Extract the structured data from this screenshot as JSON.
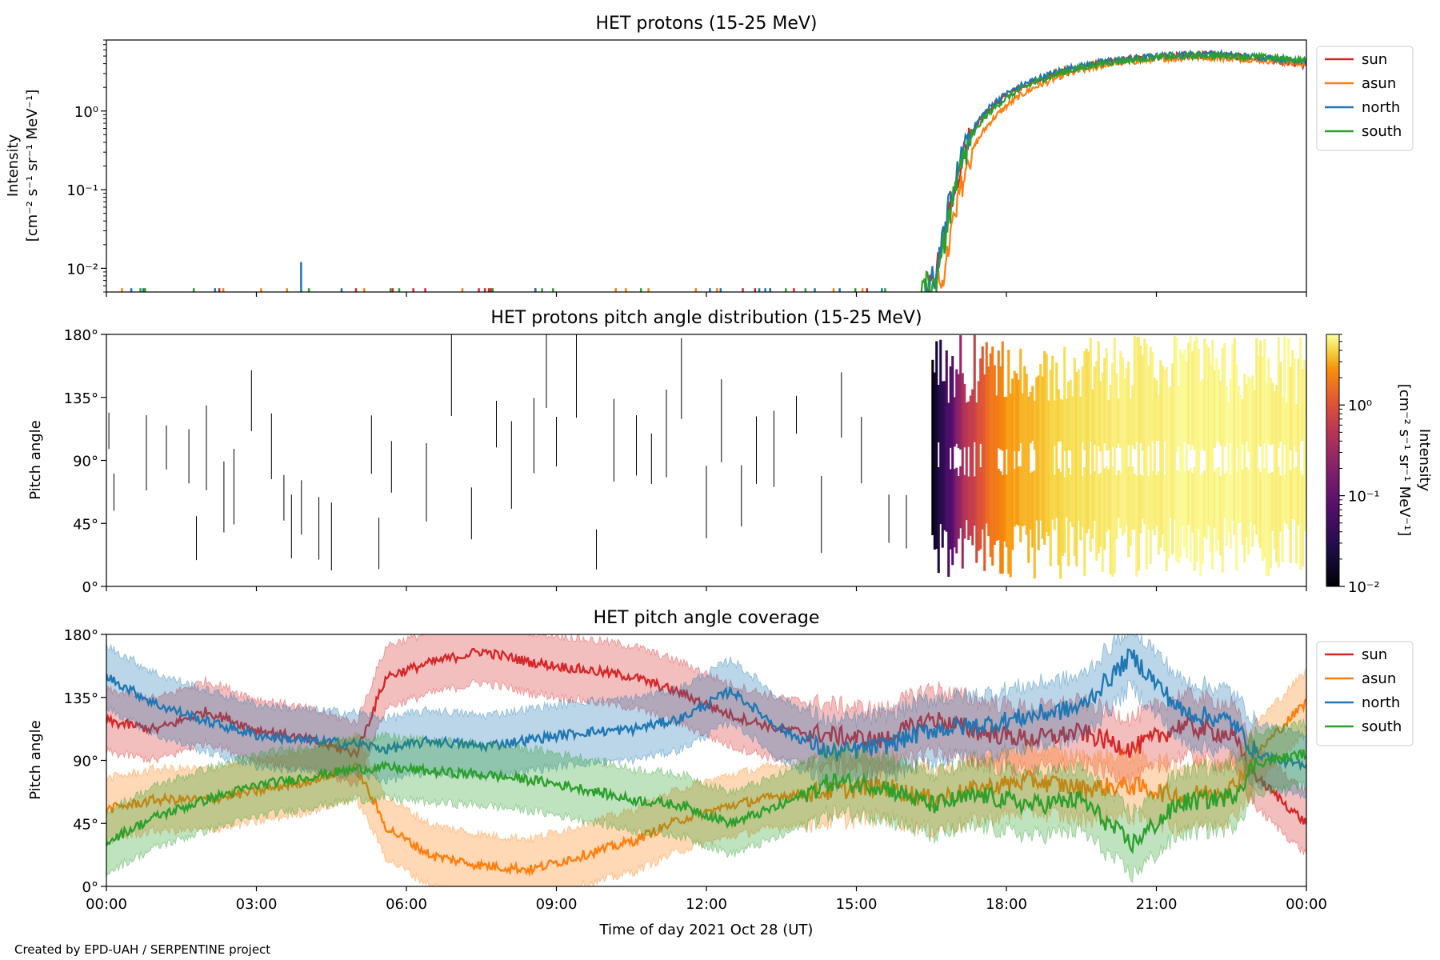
{
  "credit": "Created by EPD-UAH / SERPENTINE project",
  "chart_data": [
    {
      "type": "line",
      "title": "HET protons (15-25 MeV)",
      "ylabel": [
        "Intensity",
        "[cm⁻² s⁻¹ sr⁻¹ MeV⁻¹]"
      ],
      "yscale": "log",
      "ylim": [
        0.005,
        8
      ],
      "yticks": [
        {
          "value": 1,
          "label": "10⁰"
        },
        {
          "value": 0.1,
          "label": "10⁻¹"
        },
        {
          "value": 0.01,
          "label": "10⁻²"
        }
      ],
      "x_hours": [
        0,
        24
      ],
      "xticks_hours": [
        0,
        3,
        6,
        9,
        12,
        15,
        18,
        21,
        24
      ],
      "legend_position": "outside-right-top",
      "series": [
        {
          "name": "sun",
          "color": "#d62728",
          "points": [
            [
              16.45,
              0.005
            ],
            [
              16.6,
              0.008
            ],
            [
              16.8,
              0.03
            ],
            [
              17.0,
              0.12
            ],
            [
              17.2,
              0.35
            ],
            [
              17.5,
              0.8
            ],
            [
              17.9,
              1.4
            ],
            [
              18.5,
              2.3
            ],
            [
              19.2,
              3.3
            ],
            [
              20.0,
              4.2
            ],
            [
              21.0,
              4.9
            ],
            [
              22.0,
              5.2
            ],
            [
              23.0,
              4.8
            ],
            [
              24.0,
              3.8
            ]
          ]
        },
        {
          "name": "asun",
          "color": "#ff7f0e",
          "points": [
            [
              16.6,
              0.005
            ],
            [
              16.8,
              0.01
            ],
            [
              17.0,
              0.05
            ],
            [
              17.2,
              0.18
            ],
            [
              17.5,
              0.5
            ],
            [
              17.9,
              1.0
            ],
            [
              18.5,
              1.9
            ],
            [
              19.2,
              2.9
            ],
            [
              20.0,
              3.9
            ],
            [
              21.0,
              4.6
            ],
            [
              22.0,
              4.9
            ],
            [
              23.0,
              4.5
            ],
            [
              24.0,
              4.0
            ]
          ]
        },
        {
          "name": "north",
          "color": "#1f77b4",
          "points": [
            [
              16.4,
              0.005
            ],
            [
              16.6,
              0.009
            ],
            [
              16.8,
              0.035
            ],
            [
              17.0,
              0.13
            ],
            [
              17.2,
              0.38
            ],
            [
              17.5,
              0.85
            ],
            [
              17.9,
              1.5
            ],
            [
              18.5,
              2.4
            ],
            [
              19.2,
              3.4
            ],
            [
              20.0,
              4.3
            ],
            [
              21.0,
              5.0
            ],
            [
              22.0,
              5.4
            ],
            [
              23.0,
              4.9
            ],
            [
              24.0,
              4.3
            ]
          ]
        },
        {
          "name": "south",
          "color": "#2ca02c",
          "points": [
            [
              16.3,
              0.005
            ],
            [
              16.6,
              0.007
            ],
            [
              16.8,
              0.025
            ],
            [
              17.0,
              0.1
            ],
            [
              17.2,
              0.3
            ],
            [
              17.5,
              0.72
            ],
            [
              17.9,
              1.3
            ],
            [
              18.5,
              2.2
            ],
            [
              19.2,
              3.2
            ],
            [
              20.0,
              4.1
            ],
            [
              21.0,
              4.8
            ],
            [
              22.0,
              5.1
            ],
            [
              23.0,
              4.9
            ],
            [
              24.0,
              4.4
            ]
          ]
        }
      ]
    },
    {
      "type": "heatmap",
      "title": "HET protons pitch angle distribution (15-25 MeV)",
      "ylabel": "Pitch angle",
      "ylim": [
        0,
        180
      ],
      "yticks": [
        {
          "value": 0,
          "label": "0°"
        },
        {
          "value": 45,
          "label": "45°"
        },
        {
          "value": 90,
          "label": "90°"
        },
        {
          "value": 135,
          "label": "135°"
        },
        {
          "value": 180,
          "label": "180°"
        }
      ],
      "colormap": "inferno",
      "colorbar": {
        "label": "Intensity",
        "units": "[cm⁻² s⁻¹ sr⁻¹ MeV⁻¹]",
        "scale": "log",
        "range": [
          0.01,
          6
        ],
        "ticks": [
          {
            "value": 1,
            "label": "10⁰"
          },
          {
            "value": 0.1,
            "label": "10⁻¹"
          },
          {
            "value": 0.01,
            "label": "10⁻²"
          }
        ]
      },
      "event_onset_hours": 16.5,
      "profile": [
        [
          16.5,
          0.01
        ],
        [
          16.9,
          0.05
        ],
        [
          17.3,
          0.3
        ],
        [
          17.8,
          1.0
        ],
        [
          18.5,
          2.0
        ],
        [
          20.0,
          4.0
        ],
        [
          22.0,
          5.0
        ],
        [
          24.0,
          4.5
        ]
      ],
      "background_counts_hours": [
        0.05,
        0.15,
        0.8,
        1.2,
        1.65,
        1.8,
        2.0,
        2.35,
        2.55,
        2.9,
        3.3,
        3.55,
        3.7,
        3.9,
        4.25,
        4.5,
        5.3,
        5.45,
        5.7,
        6.4,
        6.9,
        7.3,
        7.8,
        8.1,
        8.55,
        8.8,
        9.0,
        9.4,
        9.8,
        10.15,
        10.6,
        10.9,
        11.2,
        11.5,
        12.0,
        12.3,
        12.7,
        13.0,
        13.35,
        13.8,
        14.3,
        14.7,
        15.1,
        15.65,
        16.0
      ]
    },
    {
      "type": "line",
      "title": "HET pitch angle coverage",
      "ylabel": "Pitch angle",
      "xlabel": "Time of day 2021 Oct 28 (UT)",
      "ylim": [
        0,
        180
      ],
      "yticks": [
        {
          "value": 0,
          "label": "0°"
        },
        {
          "value": 45,
          "label": "45°"
        },
        {
          "value": 90,
          "label": "90°"
        },
        {
          "value": 135,
          "label": "135°"
        },
        {
          "value": 180,
          "label": "180°"
        }
      ],
      "xticks": [
        "00:00",
        "03:00",
        "06:00",
        "09:00",
        "12:00",
        "15:00",
        "18:00",
        "21:00",
        "00:00"
      ],
      "xticks_hours": [
        0,
        3,
        6,
        9,
        12,
        15,
        18,
        21,
        24
      ],
      "legend_position": "outside-right-top",
      "band_halfwidth_deg": 22,
      "series": [
        {
          "name": "sun",
          "color": "#d62728",
          "points": [
            [
              0,
              118
            ],
            [
              1,
              112
            ],
            [
              2,
              125
            ],
            [
              3,
              112
            ],
            [
              4,
              105
            ],
            [
              5,
              95
            ],
            [
              5.6,
              150
            ],
            [
              6.5,
              160
            ],
            [
              7.5,
              168
            ],
            [
              8.5,
              160
            ],
            [
              9.5,
              155
            ],
            [
              10.5,
              150
            ],
            [
              11.5,
              138
            ],
            [
              12.5,
              122
            ],
            [
              13.5,
              112
            ],
            [
              14.5,
              108
            ],
            [
              15.5,
              104
            ],
            [
              16.5,
              120
            ],
            [
              17.5,
              110
            ],
            [
              18.5,
              105
            ],
            [
              19.5,
              110
            ],
            [
              20.5,
              98
            ],
            [
              21.5,
              115
            ],
            [
              22.5,
              108
            ],
            [
              23,
              78
            ],
            [
              24,
              45
            ]
          ]
        },
        {
          "name": "asun",
          "color": "#ff7f0e",
          "points": [
            [
              0,
              55
            ],
            [
              1,
              62
            ],
            [
              2,
              62
            ],
            [
              3,
              68
            ],
            [
              4,
              75
            ],
            [
              5,
              85
            ],
            [
              5.6,
              42
            ],
            [
              6.5,
              22
            ],
            [
              7.5,
              15
            ],
            [
              8.5,
              12
            ],
            [
              9.5,
              22
            ],
            [
              10.5,
              32
            ],
            [
              11.5,
              48
            ],
            [
              12.5,
              58
            ],
            [
              13.5,
              65
            ],
            [
              14.5,
              68
            ],
            [
              15.5,
              72
            ],
            [
              16.5,
              62
            ],
            [
              17.5,
              70
            ],
            [
              18.5,
              76
            ],
            [
              19.5,
              70
            ],
            [
              20.5,
              72
            ],
            [
              21.5,
              64
            ],
            [
              22.5,
              70
            ],
            [
              23,
              95
            ],
            [
              24,
              132
            ]
          ]
        },
        {
          "name": "north",
          "color": "#1f77b4",
          "points": [
            [
              0,
              150
            ],
            [
              1,
              130
            ],
            [
              2,
              118
            ],
            [
              3,
              108
            ],
            [
              4,
              104
            ],
            [
              5,
              102
            ],
            [
              5.6,
              98
            ],
            [
              6.5,
              104
            ],
            [
              7.5,
              100
            ],
            [
              8.5,
              105
            ],
            [
              9.5,
              110
            ],
            [
              10.5,
              112
            ],
            [
              11.5,
              120
            ],
            [
              12.5,
              140
            ],
            [
              13.5,
              112
            ],
            [
              14.5,
              95
            ],
            [
              15.5,
              100
            ],
            [
              16.5,
              112
            ],
            [
              17.5,
              115
            ],
            [
              18.5,
              122
            ],
            [
              19.5,
              128
            ],
            [
              20.5,
              165
            ],
            [
              21.5,
              125
            ],
            [
              22.5,
              118
            ],
            [
              23,
              95
            ],
            [
              24,
              85
            ]
          ]
        },
        {
          "name": "south",
          "color": "#2ca02c",
          "points": [
            [
              0,
              32
            ],
            [
              1,
              50
            ],
            [
              2,
              62
            ],
            [
              3,
              72
            ],
            [
              4,
              78
            ],
            [
              5,
              84
            ],
            [
              5.6,
              85
            ],
            [
              6.5,
              82
            ],
            [
              7.5,
              80
            ],
            [
              8.5,
              76
            ],
            [
              9.5,
              70
            ],
            [
              10.5,
              62
            ],
            [
              11.5,
              58
            ],
            [
              12.5,
              45
            ],
            [
              13.5,
              58
            ],
            [
              14.5,
              75
            ],
            [
              15.5,
              72
            ],
            [
              16.5,
              58
            ],
            [
              17.5,
              65
            ],
            [
              18.5,
              58
            ],
            [
              19.5,
              62
            ],
            [
              20.5,
              30
            ],
            [
              21.5,
              60
            ],
            [
              22.5,
              64
            ],
            [
              23,
              88
            ],
            [
              24,
              95
            ]
          ]
        }
      ]
    }
  ]
}
